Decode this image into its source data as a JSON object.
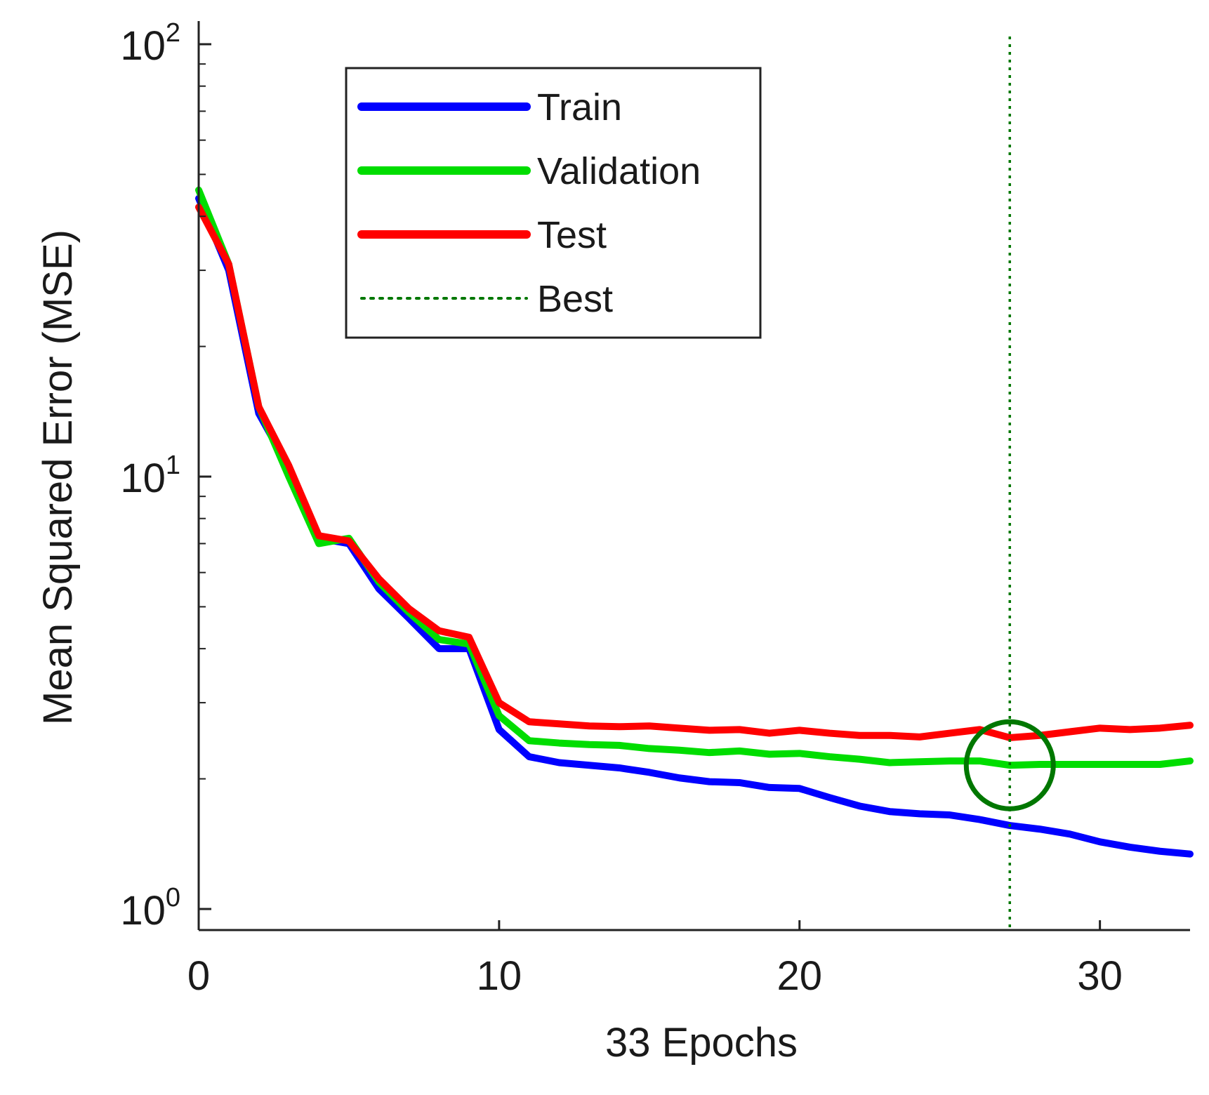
{
  "chart_data": {
    "type": "line",
    "title": "",
    "xlabel": "33 Epochs",
    "ylabel": "Mean Squared Error  (MSE)",
    "yscale": "log",
    "xlim": [
      0,
      33
    ],
    "ylim": [
      0.95,
      115
    ],
    "x_ticks": [
      {
        "value": 0,
        "label": "0"
      },
      {
        "value": 10,
        "label": "10"
      },
      {
        "value": 20,
        "label": "20"
      },
      {
        "value": 30,
        "label": "30"
      }
    ],
    "y_ticks": [
      {
        "value": 1,
        "base": "10",
        "exp": "0"
      },
      {
        "value": 10,
        "base": "10",
        "exp": "1"
      },
      {
        "value": 100,
        "base": "10",
        "exp": "2"
      }
    ],
    "x": [
      0,
      1,
      2,
      3,
      4,
      5,
      6,
      7,
      8,
      9,
      10,
      11,
      12,
      13,
      14,
      15,
      16,
      17,
      18,
      19,
      20,
      21,
      22,
      23,
      24,
      25,
      26,
      27,
      28,
      29,
      30,
      31,
      32,
      33
    ],
    "series": [
      {
        "name": "Train",
        "color": "#0000ff",
        "values": [
          44,
          30,
          14,
          10.5,
          7.2,
          7.0,
          5.5,
          4.7,
          4.0,
          4.0,
          2.6,
          2.25,
          2.18,
          2.15,
          2.12,
          2.07,
          2.01,
          1.97,
          1.96,
          1.91,
          1.9,
          1.81,
          1.73,
          1.68,
          1.66,
          1.65,
          1.61,
          1.56,
          1.53,
          1.49,
          1.43,
          1.39,
          1.36,
          1.34
        ]
      },
      {
        "name": "Validation",
        "color": "#00dd00",
        "values": [
          46,
          31,
          14.5,
          10.0,
          7.0,
          7.2,
          5.7,
          4.85,
          4.2,
          4.1,
          2.8,
          2.45,
          2.42,
          2.4,
          2.39,
          2.35,
          2.33,
          2.3,
          2.32,
          2.28,
          2.29,
          2.25,
          2.22,
          2.18,
          2.19,
          2.2,
          2.2,
          2.15,
          2.16,
          2.16,
          2.16,
          2.16,
          2.16,
          2.2
        ]
      },
      {
        "name": "Test",
        "color": "#ff0000",
        "values": [
          42,
          31,
          14.5,
          10.6,
          7.3,
          7.1,
          5.8,
          4.95,
          4.4,
          4.25,
          3.0,
          2.71,
          2.68,
          2.65,
          2.64,
          2.65,
          2.62,
          2.59,
          2.6,
          2.55,
          2.59,
          2.55,
          2.52,
          2.52,
          2.5,
          2.55,
          2.6,
          2.49,
          2.52,
          2.57,
          2.62,
          2.6,
          2.62,
          2.66
        ]
      }
    ],
    "best": {
      "name": "Best",
      "epoch": 27,
      "value": 2.15,
      "color": "#007700"
    },
    "legend": {
      "position": "top-left",
      "entries": [
        "Train",
        "Validation",
        "Test",
        "Best"
      ]
    }
  }
}
